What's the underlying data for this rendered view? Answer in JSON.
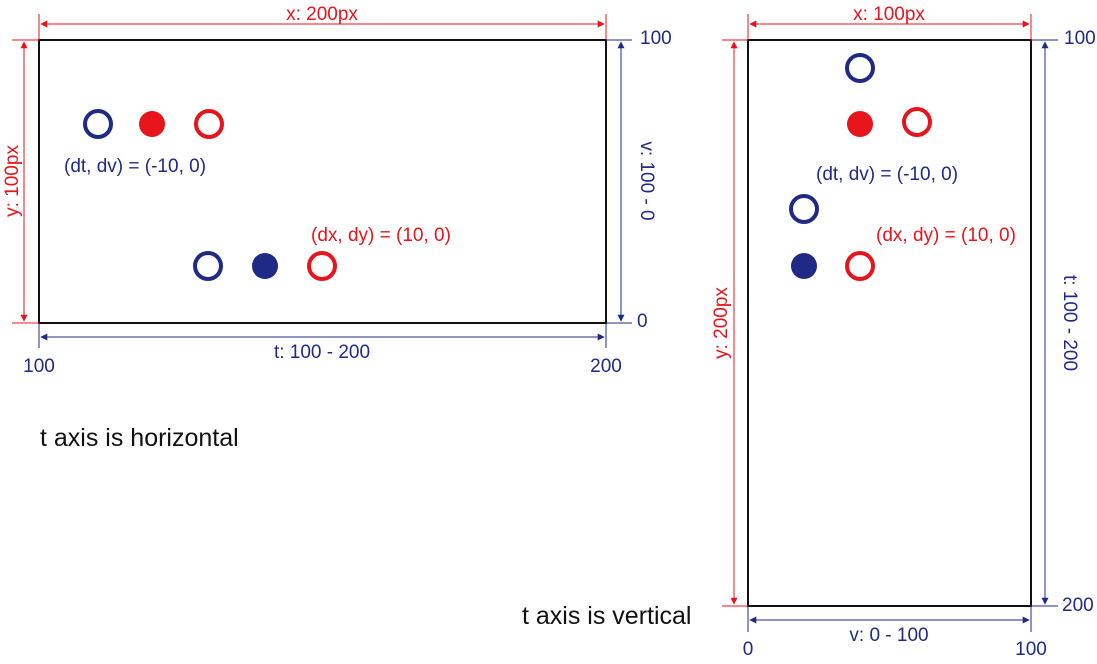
{
  "colors": {
    "red": "#e8141c",
    "blue": "#1f2a86",
    "frame": "#111111"
  },
  "panels": [
    {
      "caption": "t axis is horizontal",
      "x_dim": "x: 200px",
      "y_dim": "y: 100px",
      "t_dim": "t: 100 - 200",
      "v_dim": "v: 100 - 0",
      "t_start": "100",
      "t_end": "200",
      "v_top": "100",
      "v_bottom": "0",
      "label_dtdv": "(dt, dv) = (-10, 0)",
      "label_dxdy": "(dx, dy) = (10, 0)"
    },
    {
      "caption": "t axis is vertical",
      "x_dim": "x: 100px",
      "y_dim": "y: 200px",
      "t_dim": "t: 100 - 200",
      "v_dim": "v: 0 - 100",
      "v_start": "0",
      "v_end": "100",
      "t_top": "100",
      "t_bottom": "200",
      "label_dtdv": "(dt, dv) = (-10, 0)",
      "label_dxdy": "(dx, dy) = (10, 0)"
    }
  ]
}
